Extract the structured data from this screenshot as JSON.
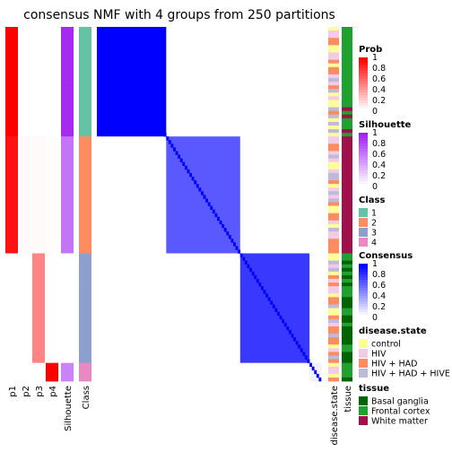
{
  "chart_data": {
    "type": "heatmap",
    "title": "consensus NMF with 4 groups from 250 partitions",
    "column_labels": [
      "p1",
      "p2",
      "p3",
      "p4",
      "Silhouette",
      "Class",
      "disease.state",
      "tissue"
    ],
    "groups": [
      {
        "class": "1",
        "size": 30,
        "p1": 1.0,
        "p2": 0.0,
        "p3": 0.0,
        "p4": 0.0,
        "silhouette": 0.95
      },
      {
        "class": "2",
        "size": 32,
        "p1": 0.93,
        "p2": 0.02,
        "p3": 0.02,
        "p4": 0.01,
        "silhouette": 0.62
      },
      {
        "class": "3",
        "size": 30,
        "p1": 0.0,
        "p2": 0.0,
        "p3": 0.48,
        "p4": 0.0,
        "silhouette": 0.0
      },
      {
        "class": "4",
        "size": 5,
        "p1": 0.0,
        "p2": 0.0,
        "p3": 0.0,
        "p4": 1.0,
        "silhouette": 0.55
      }
    ],
    "consensus_blocks": [
      {
        "class": "1",
        "value": 1.0
      },
      {
        "class": "2",
        "value": 0.65
      },
      {
        "class": "3",
        "value": 0.78
      },
      {
        "class": "4",
        "value": 0.05
      }
    ],
    "legends": [
      {
        "title": "Prob",
        "ticks": [
          "1",
          "0.8",
          "0.6",
          "0.4",
          "0.2",
          "0"
        ],
        "color": "#FF0000"
      },
      {
        "title": "Silhouette",
        "ticks": [
          "1",
          "0.8",
          "0.6",
          "0.4",
          "0.2",
          "0"
        ],
        "color": "#A020F0"
      },
      {
        "title": "Consensus",
        "ticks": [
          "1",
          "0.8",
          "0.6",
          "0.4",
          "0.2",
          "0"
        ],
        "color": "#0000FF"
      }
    ],
    "class_legend": {
      "title": "Class",
      "items": [
        {
          "label": "1",
          "color": "#66C2A5"
        },
        {
          "label": "2",
          "color": "#FC8D62"
        },
        {
          "label": "3",
          "color": "#8DA0CB"
        },
        {
          "label": "4",
          "color": "#E78AC3"
        }
      ]
    },
    "disease_legend": {
      "title": "disease.state",
      "items": [
        {
          "label": "control",
          "color": "#FFFF99"
        },
        {
          "label": "HIV",
          "color": "#F4CAE4"
        },
        {
          "label": "HIV + HAD",
          "color": "#FC8D62"
        },
        {
          "label": "HIV + HAD + HIVE",
          "color": "#BEBADA"
        }
      ]
    },
    "tissue_legend": {
      "title": "tissue",
      "items": [
        {
          "label": "Basal ganglia",
          "color": "#006400"
        },
        {
          "label": "Frontal cortex",
          "color": "#1FA030"
        },
        {
          "label": "White matter",
          "color": "#A0104A"
        }
      ]
    }
  }
}
